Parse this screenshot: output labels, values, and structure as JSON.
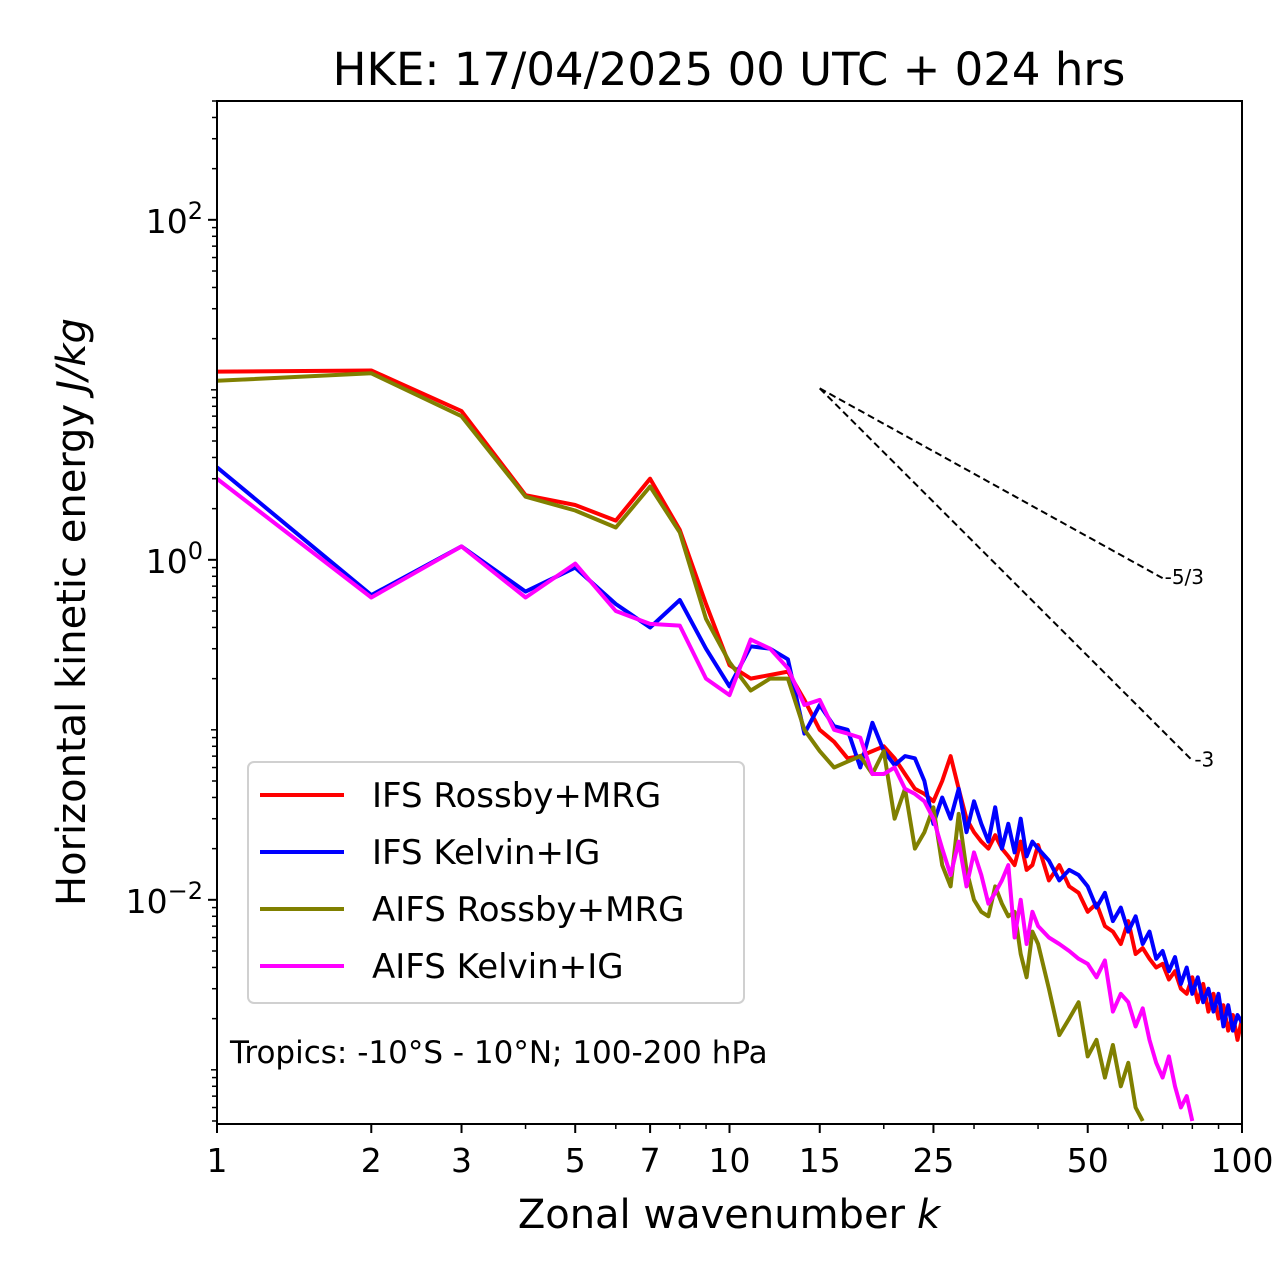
{
  "chart_data": {
    "type": "line",
    "title": "HKE: 17/04/2025 00 UTC + 024 hrs",
    "xlabel": "Zonal wavenumber",
    "xlabel_var": "k",
    "ylabel": "Horizontal kinetic energy",
    "ylabel_units": "J/kg",
    "xscale": "log",
    "yscale": "log",
    "xlim": [
      1,
      100
    ],
    "ylim": [
      0.00048,
      500
    ],
    "x_ticks": [
      1,
      2,
      3,
      5,
      7,
      10,
      15,
      25,
      50,
      100
    ],
    "x_tick_labels": [
      "1",
      "2",
      "3",
      "5",
      "7",
      "10",
      "15",
      "25",
      "50",
      "100"
    ],
    "y_ticks": [
      0.01,
      1,
      100
    ],
    "y_tick_labels": [
      {
        "base": "10",
        "exp": "−2"
      },
      {
        "base": "10",
        "exp": "0"
      },
      {
        "base": "10",
        "exp": "2"
      }
    ],
    "grid": false,
    "legend_position": "lower-left",
    "annotation": "Tropics: -10°S - 10°N; 100-200 hPa",
    "reference_slopes": [
      {
        "label": "-5/3",
        "x": [
          15,
          70
        ],
        "y": [
          10.2,
          0.78
        ]
      },
      {
        "label": "-3",
        "x": [
          15,
          80
        ],
        "y": [
          10.2,
          0.066
        ]
      }
    ],
    "series": [
      {
        "name": "IFS Rossby+MRG",
        "color": "#ff0000",
        "x": [
          1,
          2,
          3,
          4,
          5,
          6,
          7,
          8,
          9,
          10,
          11,
          12,
          13,
          14,
          15,
          16,
          17,
          18,
          19,
          20,
          21,
          22,
          23,
          24,
          25,
          26,
          27,
          28,
          29,
          30,
          31,
          32,
          33,
          34,
          35,
          36,
          37,
          38,
          39,
          40,
          42,
          44,
          46,
          48,
          50,
          52,
          54,
          56,
          58,
          60,
          62,
          64,
          66,
          68,
          70,
          72,
          74,
          76,
          78,
          80,
          82,
          84,
          86,
          88,
          90,
          92,
          94,
          96,
          98,
          100
        ],
        "y": [
          12.8,
          13.0,
          7.5,
          2.4,
          2.1,
          1.7,
          3.0,
          1.5,
          0.55,
          0.24,
          0.2,
          0.21,
          0.22,
          0.15,
          0.1,
          0.085,
          0.068,
          0.07,
          0.075,
          0.08,
          0.068,
          0.055,
          0.045,
          0.042,
          0.038,
          0.05,
          0.07,
          0.045,
          0.03,
          0.025,
          0.022,
          0.02,
          0.024,
          0.02,
          0.018,
          0.016,
          0.022,
          0.015,
          0.016,
          0.021,
          0.013,
          0.016,
          0.012,
          0.011,
          0.0085,
          0.0095,
          0.007,
          0.0065,
          0.0055,
          0.0075,
          0.0048,
          0.0052,
          0.0045,
          0.004,
          0.0042,
          0.0034,
          0.0038,
          0.003,
          0.0028,
          0.0035,
          0.0025,
          0.0032,
          0.0022,
          0.0028,
          0.002,
          0.0024,
          0.0017,
          0.0021,
          0.0015,
          0.002
        ]
      },
      {
        "name": "IFS Kelvin+IG",
        "color": "#0000ff",
        "x": [
          1,
          2,
          3,
          4,
          5,
          6,
          7,
          8,
          9,
          10,
          11,
          12,
          13,
          14,
          15,
          16,
          17,
          18,
          19,
          20,
          21,
          22,
          23,
          24,
          25,
          26,
          27,
          28,
          29,
          30,
          31,
          32,
          33,
          34,
          35,
          36,
          37,
          38,
          39,
          40,
          42,
          44,
          46,
          48,
          50,
          52,
          54,
          56,
          58,
          60,
          62,
          64,
          66,
          68,
          70,
          72,
          74,
          76,
          78,
          80,
          82,
          84,
          86,
          88,
          90,
          92,
          94,
          96,
          98,
          100
        ],
        "y": [
          3.5,
          0.62,
          1.2,
          0.65,
          0.9,
          0.55,
          0.4,
          0.58,
          0.3,
          0.18,
          0.31,
          0.3,
          0.26,
          0.095,
          0.14,
          0.105,
          0.1,
          0.06,
          0.11,
          0.075,
          0.062,
          0.07,
          0.068,
          0.05,
          0.028,
          0.04,
          0.03,
          0.045,
          0.025,
          0.038,
          0.028,
          0.022,
          0.035,
          0.02,
          0.028,
          0.019,
          0.03,
          0.018,
          0.022,
          0.02,
          0.017,
          0.013,
          0.015,
          0.014,
          0.012,
          0.009,
          0.011,
          0.0075,
          0.009,
          0.0065,
          0.008,
          0.0055,
          0.0065,
          0.0045,
          0.005,
          0.0038,
          0.0046,
          0.0032,
          0.004,
          0.0028,
          0.0035,
          0.0025,
          0.003,
          0.0022,
          0.0028,
          0.0018,
          0.0024,
          0.0017,
          0.0021,
          0.0019
        ]
      },
      {
        "name": "AIFS Rossby+MRG",
        "color": "#808000",
        "x": [
          1,
          2,
          3,
          4,
          5,
          6,
          7,
          8,
          9,
          10,
          11,
          12,
          13,
          14,
          15,
          16,
          17,
          18,
          19,
          20,
          21,
          22,
          23,
          24,
          25,
          26,
          27,
          28,
          29,
          30,
          31,
          32,
          33,
          34,
          35,
          36,
          37,
          38,
          39,
          40,
          42,
          44,
          46,
          48,
          50,
          52,
          54,
          56,
          58,
          60,
          62,
          64
        ],
        "y": [
          11.3,
          12.5,
          7.0,
          2.35,
          1.95,
          1.55,
          2.7,
          1.45,
          0.45,
          0.25,
          0.17,
          0.2,
          0.2,
          0.1,
          0.075,
          0.06,
          0.065,
          0.07,
          0.055,
          0.075,
          0.03,
          0.045,
          0.02,
          0.025,
          0.035,
          0.016,
          0.012,
          0.032,
          0.015,
          0.01,
          0.0085,
          0.008,
          0.012,
          0.0095,
          0.008,
          0.0085,
          0.0048,
          0.0035,
          0.0065,
          0.0055,
          0.003,
          0.0016,
          0.002,
          0.0025,
          0.0012,
          0.0015,
          0.0009,
          0.0014,
          0.0008,
          0.0011,
          0.0006,
          0.0005
        ]
      },
      {
        "name": "AIFS Kelvin+IG",
        "color": "#ff00ff",
        "x": [
          1,
          2,
          3,
          4,
          5,
          6,
          7,
          8,
          9,
          10,
          11,
          12,
          13,
          14,
          15,
          16,
          17,
          18,
          19,
          20,
          21,
          22,
          23,
          24,
          25,
          26,
          27,
          28,
          29,
          30,
          31,
          32,
          33,
          34,
          35,
          36,
          37,
          38,
          39,
          40,
          42,
          44,
          46,
          48,
          50,
          52,
          54,
          56,
          58,
          60,
          62,
          64,
          66,
          68,
          70,
          72,
          74,
          76,
          78,
          80
        ],
        "y": [
          3.0,
          0.6,
          1.2,
          0.6,
          0.95,
          0.5,
          0.42,
          0.41,
          0.2,
          0.16,
          0.34,
          0.3,
          0.23,
          0.14,
          0.15,
          0.1,
          0.095,
          0.09,
          0.055,
          0.055,
          0.06,
          0.045,
          0.042,
          0.038,
          0.03,
          0.02,
          0.014,
          0.022,
          0.012,
          0.019,
          0.014,
          0.0095,
          0.011,
          0.013,
          0.016,
          0.006,
          0.01,
          0.0055,
          0.0085,
          0.007,
          0.006,
          0.0055,
          0.005,
          0.0045,
          0.0042,
          0.0035,
          0.0044,
          0.0022,
          0.0028,
          0.0025,
          0.0018,
          0.0023,
          0.0015,
          0.0011,
          0.0009,
          0.0012,
          0.0008,
          0.0006,
          0.0007,
          0.0005
        ]
      }
    ]
  }
}
